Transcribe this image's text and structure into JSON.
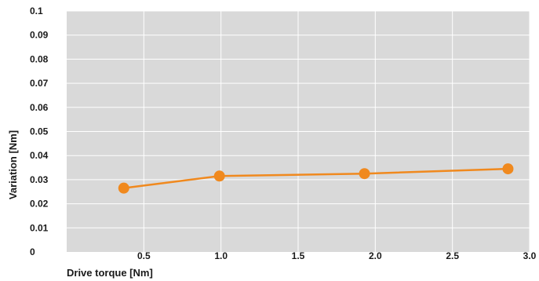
{
  "chart_data": {
    "type": "line",
    "xlabel": "Drive torque [Nm]",
    "ylabel": "Variation [Nm]",
    "xlim": [
      0,
      3.0
    ],
    "ylim": [
      0,
      0.1
    ],
    "x_ticks": [
      0.5,
      1.0,
      1.5,
      2.0,
      2.5,
      3.0
    ],
    "x_tick_labels": [
      "0.5",
      "1.0",
      "1.5",
      "2.0",
      "2.5",
      "3.0"
    ],
    "y_ticks": [
      0,
      0.01,
      0.02,
      0.03,
      0.04,
      0.05,
      0.06,
      0.07,
      0.08,
      0.09,
      0.1
    ],
    "y_tick_labels": [
      "0",
      "0.01",
      "0.02",
      "0.03",
      "0.04",
      "0.05",
      "0.06",
      "0.07",
      "0.08",
      "0.09",
      "0.1"
    ],
    "grid": true,
    "legend": "none",
    "plot_background": "#d9d9d9",
    "grid_color": "#ffffff",
    "series": [
      {
        "color": "#f0891e",
        "x": [
          0.37,
          0.99,
          1.93,
          2.86
        ],
        "y": [
          0.0265,
          0.0315,
          0.0325,
          0.0345
        ]
      }
    ]
  }
}
